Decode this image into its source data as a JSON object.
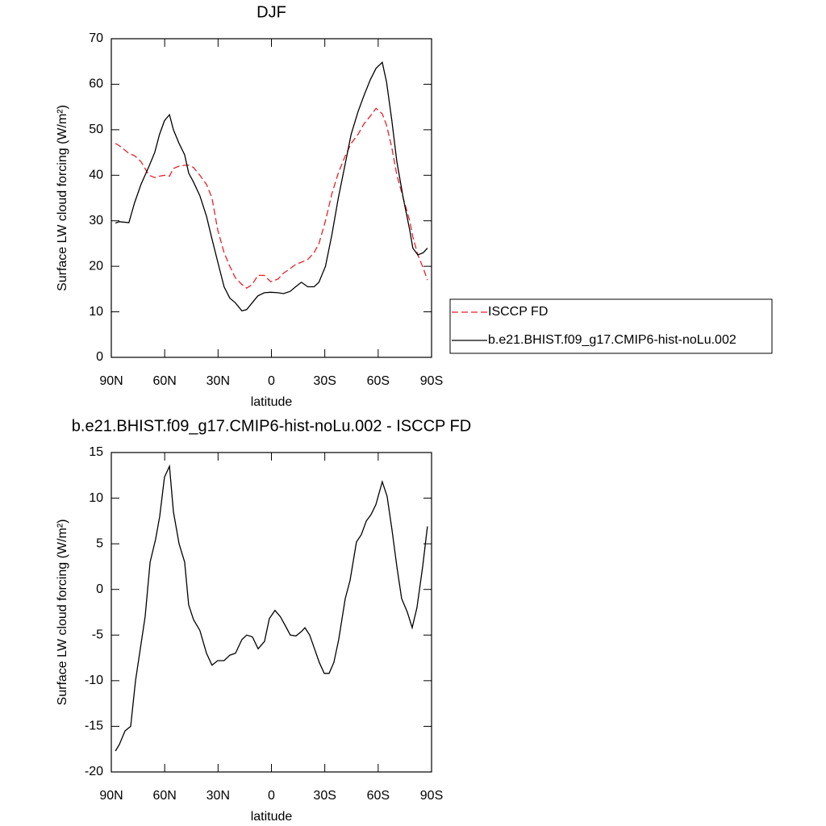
{
  "chart_data": [
    {
      "type": "line",
      "title": "DJF",
      "xlabel": "latitude",
      "ylabel": "Surface LW cloud forcing (W/m²)",
      "x": [
        87.7,
        85.5,
        80.1,
        76.9,
        73.3,
        68.8,
        65.6,
        62.9,
        60.1,
        57.3,
        55.1,
        51.9,
        48.8,
        46.5,
        43.8,
        40.2,
        36.5,
        33.4,
        30.2,
        26.6,
        23.4,
        20.3,
        16.6,
        13.9,
        10.8,
        7.6,
        4.0,
        0.4,
        -3.7,
        -6.8,
        -10.5,
        -13.6,
        -16.8,
        -20.4,
        -24.0,
        -26.7,
        -30.4,
        -34.0,
        -37.6,
        -41.2,
        -44.8,
        -48.7,
        -52.0,
        -55.6,
        -58.8,
        -62.3,
        -64.7,
        -67.7,
        -70.5,
        -74.1,
        -77.7,
        -79.5,
        -82.3,
        -85.4,
        -87.7
      ],
      "series": [
        {
          "name": "ISCCP FD",
          "color": "#e8202a",
          "dash": true,
          "values": [
            47,
            46.5,
            44.8,
            44.3,
            43,
            40,
            39.5,
            39.8,
            40,
            39.8,
            41.5,
            42,
            42.2,
            42.2,
            41.7,
            40,
            38,
            35,
            28,
            23,
            20,
            17.5,
            16,
            15.2,
            16,
            18,
            18,
            16.6,
            17.2,
            18.5,
            19.5,
            20.4,
            20.9,
            21.5,
            23,
            25,
            30,
            36,
            40.5,
            44,
            47,
            49,
            51.3,
            53,
            54.7,
            53.5,
            51,
            46,
            40,
            35,
            30,
            26.5,
            22.5,
            19.5,
            17
          ]
        },
        {
          "name": "b.e21.BHIST.f09_g17.CMIP6-hist-noLu.002",
          "color": "#000000",
          "dash": false,
          "values": [
            29.5,
            29.8,
            29.6,
            34,
            38,
            42,
            45,
            49,
            52,
            53.3,
            50,
            47,
            44.5,
            40.5,
            38.5,
            35.5,
            31,
            26,
            21,
            15.5,
            13,
            12,
            10.2,
            10.5,
            12,
            13.5,
            14.2,
            14.3,
            14.2,
            14,
            14.5,
            15.5,
            16.5,
            15.5,
            15.5,
            16.5,
            20,
            27,
            35,
            42,
            49,
            54,
            57.5,
            61,
            63.5,
            64.8,
            60.5,
            52,
            43,
            35,
            28,
            24,
            22.5,
            23,
            24
          ]
        }
      ],
      "xlim": [
        90,
        -90
      ],
      "xticks": [
        {
          "value": 90,
          "label": "90N"
        },
        {
          "value": 60,
          "label": "60N"
        },
        {
          "value": 30,
          "label": "30N"
        },
        0,
        {
          "value": -30,
          "label": "30S"
        },
        {
          "value": -60,
          "label": "60S"
        },
        {
          "value": -90,
          "label": "90S"
        }
      ],
      "ylim": [
        0,
        70
      ],
      "yticks": [
        0,
        10,
        20,
        30,
        40,
        50,
        60,
        70
      ],
      "legend": "right"
    },
    {
      "type": "line",
      "title": "b.e21.BHIST.f09_g17.CMIP6-hist-noLu.002 - ISCCP FD",
      "xlabel": "latitude",
      "ylabel": "Surface LW cloud forcing (W/m²)",
      "x": [
        87.7,
        85.5,
        82.3,
        79.1,
        76.4,
        73.3,
        71.0,
        68.2,
        65.1,
        62.8,
        60.1,
        57.3,
        55.1,
        51.9,
        48.8,
        46.5,
        43.8,
        40.2,
        36.5,
        33.4,
        30.2,
        26.6,
        23.4,
        20.2,
        16.6,
        13.9,
        10.7,
        7.5,
        3.9,
        1.2,
        -2.0,
        -5.1,
        -7.9,
        -10.6,
        -13.8,
        -16.9,
        -18.8,
        -21.5,
        -24.2,
        -26.9,
        -29.7,
        -32.4,
        -35.1,
        -37.8,
        -41.5,
        -44.2,
        -47.8,
        -50.5,
        -53.3,
        -56.0,
        -58.7,
        -62.3,
        -65.0,
        -67.8,
        -70.5,
        -73.2,
        -76.4,
        -79.1,
        -81.8,
        -85.0,
        -87.7
      ],
      "series": [
        {
          "color": "#000000",
          "dash": false,
          "values": [
            -17.7,
            -17,
            -15.5,
            -15,
            -10,
            -6,
            -3,
            3,
            5.5,
            8,
            12.3,
            13.5,
            8.5,
            5,
            3,
            -1.7,
            -3.3,
            -4.5,
            -7,
            -8.3,
            -7.8,
            -7.8,
            -7.2,
            -7,
            -5.5,
            -5,
            -5.2,
            -6.5,
            -5.7,
            -3.2,
            -2.3,
            -3,
            -4,
            -5,
            -5.1,
            -4.6,
            -4.2,
            -5,
            -6.5,
            -8,
            -9.2,
            -9.2,
            -8,
            -5.5,
            -1,
            1,
            5.2,
            6,
            7.5,
            8.2,
            9.3,
            11.8,
            10.2,
            6.5,
            2.5,
            -1,
            -2.5,
            -4.2,
            -2,
            2.5,
            6.9
          ]
        }
      ],
      "xlim": [
        90,
        -90
      ],
      "xticks": [
        {
          "value": 90,
          "label": "90N"
        },
        {
          "value": 60,
          "label": "60N"
        },
        {
          "value": 30,
          "label": "30N"
        },
        0,
        {
          "value": -30,
          "label": "30S"
        },
        {
          "value": -60,
          "label": "60S"
        },
        {
          "value": -90,
          "label": "90S"
        }
      ],
      "ylim": [
        -20,
        15
      ],
      "yticks": [
        -20,
        -15,
        -10,
        -5,
        0,
        5,
        10,
        15
      ]
    }
  ]
}
